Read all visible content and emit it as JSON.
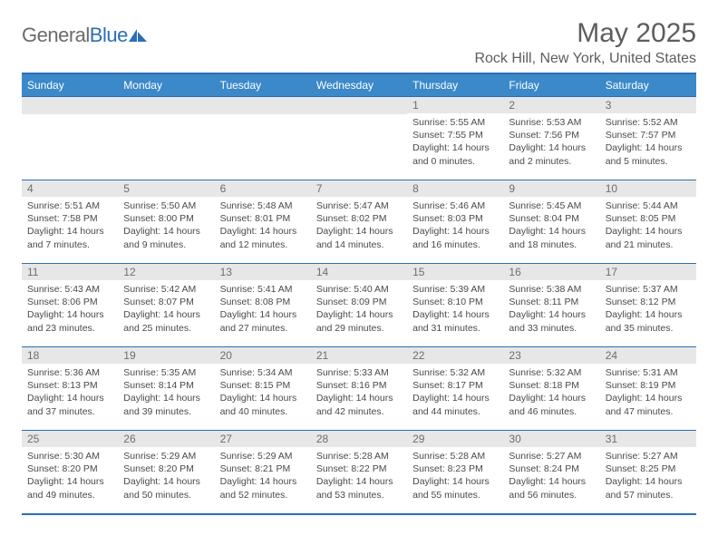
{
  "logo": {
    "text_left": "General",
    "text_right": "Blue"
  },
  "title": "May 2025",
  "location": "Rock Hill, New York, United States",
  "days_of_week": [
    "Sunday",
    "Monday",
    "Tuesday",
    "Wednesday",
    "Thursday",
    "Friday",
    "Saturday"
  ],
  "colors": {
    "header_bg": "#3b89c9",
    "border": "#2a6fb5",
    "daynum_bg": "#e7e7e7",
    "text": "#4a4a4a"
  },
  "weeks": [
    [
      {
        "n": "",
        "sr": "",
        "ss": "",
        "dl": ""
      },
      {
        "n": "",
        "sr": "",
        "ss": "",
        "dl": ""
      },
      {
        "n": "",
        "sr": "",
        "ss": "",
        "dl": ""
      },
      {
        "n": "",
        "sr": "",
        "ss": "",
        "dl": ""
      },
      {
        "n": "1",
        "sr": "Sunrise: 5:55 AM",
        "ss": "Sunset: 7:55 PM",
        "dl": "Daylight: 14 hours and 0 minutes."
      },
      {
        "n": "2",
        "sr": "Sunrise: 5:53 AM",
        "ss": "Sunset: 7:56 PM",
        "dl": "Daylight: 14 hours and 2 minutes."
      },
      {
        "n": "3",
        "sr": "Sunrise: 5:52 AM",
        "ss": "Sunset: 7:57 PM",
        "dl": "Daylight: 14 hours and 5 minutes."
      }
    ],
    [
      {
        "n": "4",
        "sr": "Sunrise: 5:51 AM",
        "ss": "Sunset: 7:58 PM",
        "dl": "Daylight: 14 hours and 7 minutes."
      },
      {
        "n": "5",
        "sr": "Sunrise: 5:50 AM",
        "ss": "Sunset: 8:00 PM",
        "dl": "Daylight: 14 hours and 9 minutes."
      },
      {
        "n": "6",
        "sr": "Sunrise: 5:48 AM",
        "ss": "Sunset: 8:01 PM",
        "dl": "Daylight: 14 hours and 12 minutes."
      },
      {
        "n": "7",
        "sr": "Sunrise: 5:47 AM",
        "ss": "Sunset: 8:02 PM",
        "dl": "Daylight: 14 hours and 14 minutes."
      },
      {
        "n": "8",
        "sr": "Sunrise: 5:46 AM",
        "ss": "Sunset: 8:03 PM",
        "dl": "Daylight: 14 hours and 16 minutes."
      },
      {
        "n": "9",
        "sr": "Sunrise: 5:45 AM",
        "ss": "Sunset: 8:04 PM",
        "dl": "Daylight: 14 hours and 18 minutes."
      },
      {
        "n": "10",
        "sr": "Sunrise: 5:44 AM",
        "ss": "Sunset: 8:05 PM",
        "dl": "Daylight: 14 hours and 21 minutes."
      }
    ],
    [
      {
        "n": "11",
        "sr": "Sunrise: 5:43 AM",
        "ss": "Sunset: 8:06 PM",
        "dl": "Daylight: 14 hours and 23 minutes."
      },
      {
        "n": "12",
        "sr": "Sunrise: 5:42 AM",
        "ss": "Sunset: 8:07 PM",
        "dl": "Daylight: 14 hours and 25 minutes."
      },
      {
        "n": "13",
        "sr": "Sunrise: 5:41 AM",
        "ss": "Sunset: 8:08 PM",
        "dl": "Daylight: 14 hours and 27 minutes."
      },
      {
        "n": "14",
        "sr": "Sunrise: 5:40 AM",
        "ss": "Sunset: 8:09 PM",
        "dl": "Daylight: 14 hours and 29 minutes."
      },
      {
        "n": "15",
        "sr": "Sunrise: 5:39 AM",
        "ss": "Sunset: 8:10 PM",
        "dl": "Daylight: 14 hours and 31 minutes."
      },
      {
        "n": "16",
        "sr": "Sunrise: 5:38 AM",
        "ss": "Sunset: 8:11 PM",
        "dl": "Daylight: 14 hours and 33 minutes."
      },
      {
        "n": "17",
        "sr": "Sunrise: 5:37 AM",
        "ss": "Sunset: 8:12 PM",
        "dl": "Daylight: 14 hours and 35 minutes."
      }
    ],
    [
      {
        "n": "18",
        "sr": "Sunrise: 5:36 AM",
        "ss": "Sunset: 8:13 PM",
        "dl": "Daylight: 14 hours and 37 minutes."
      },
      {
        "n": "19",
        "sr": "Sunrise: 5:35 AM",
        "ss": "Sunset: 8:14 PM",
        "dl": "Daylight: 14 hours and 39 minutes."
      },
      {
        "n": "20",
        "sr": "Sunrise: 5:34 AM",
        "ss": "Sunset: 8:15 PM",
        "dl": "Daylight: 14 hours and 40 minutes."
      },
      {
        "n": "21",
        "sr": "Sunrise: 5:33 AM",
        "ss": "Sunset: 8:16 PM",
        "dl": "Daylight: 14 hours and 42 minutes."
      },
      {
        "n": "22",
        "sr": "Sunrise: 5:32 AM",
        "ss": "Sunset: 8:17 PM",
        "dl": "Daylight: 14 hours and 44 minutes."
      },
      {
        "n": "23",
        "sr": "Sunrise: 5:32 AM",
        "ss": "Sunset: 8:18 PM",
        "dl": "Daylight: 14 hours and 46 minutes."
      },
      {
        "n": "24",
        "sr": "Sunrise: 5:31 AM",
        "ss": "Sunset: 8:19 PM",
        "dl": "Daylight: 14 hours and 47 minutes."
      }
    ],
    [
      {
        "n": "25",
        "sr": "Sunrise: 5:30 AM",
        "ss": "Sunset: 8:20 PM",
        "dl": "Daylight: 14 hours and 49 minutes."
      },
      {
        "n": "26",
        "sr": "Sunrise: 5:29 AM",
        "ss": "Sunset: 8:20 PM",
        "dl": "Daylight: 14 hours and 50 minutes."
      },
      {
        "n": "27",
        "sr": "Sunrise: 5:29 AM",
        "ss": "Sunset: 8:21 PM",
        "dl": "Daylight: 14 hours and 52 minutes."
      },
      {
        "n": "28",
        "sr": "Sunrise: 5:28 AM",
        "ss": "Sunset: 8:22 PM",
        "dl": "Daylight: 14 hours and 53 minutes."
      },
      {
        "n": "29",
        "sr": "Sunrise: 5:28 AM",
        "ss": "Sunset: 8:23 PM",
        "dl": "Daylight: 14 hours and 55 minutes."
      },
      {
        "n": "30",
        "sr": "Sunrise: 5:27 AM",
        "ss": "Sunset: 8:24 PM",
        "dl": "Daylight: 14 hours and 56 minutes."
      },
      {
        "n": "31",
        "sr": "Sunrise: 5:27 AM",
        "ss": "Sunset: 8:25 PM",
        "dl": "Daylight: 14 hours and 57 minutes."
      }
    ]
  ]
}
